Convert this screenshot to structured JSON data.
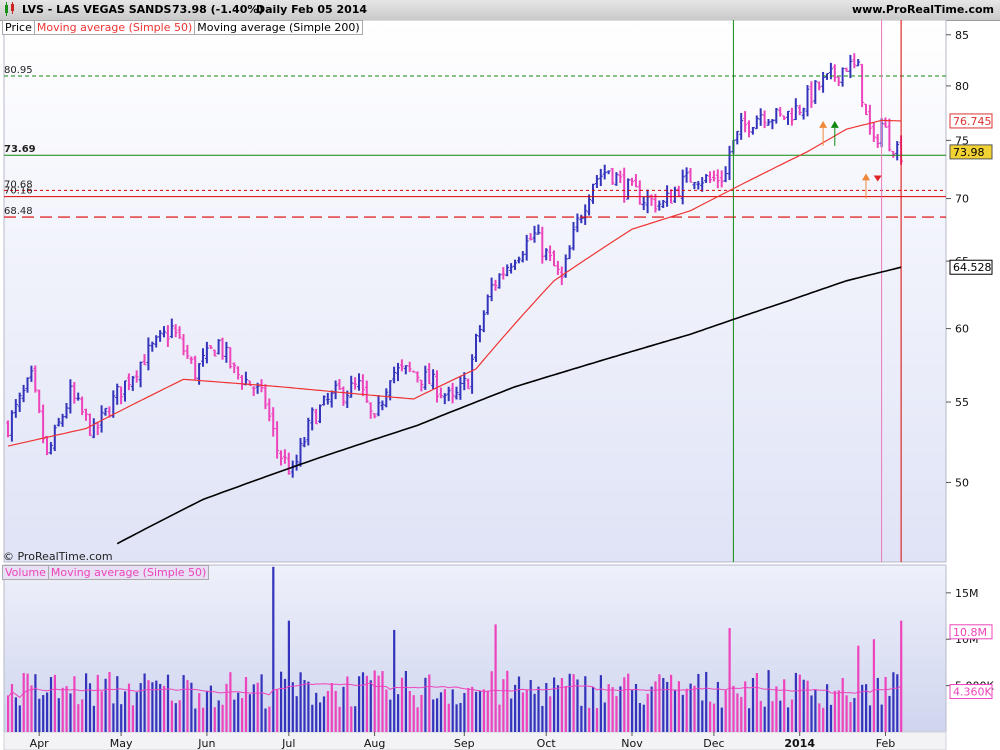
{
  "header": {
    "title": "LVS - LAS VEGAS SANDS",
    "quote": "73.98 (-1.40%)",
    "period": "Daily  Feb 05 2014",
    "site": "www.ProRealTime.com"
  },
  "price_legend": {
    "price": "Price",
    "ma50": "Moving average (Simple 50)",
    "ma200": "Moving average (Simple 200)"
  },
  "volume_legend": {
    "volume": "Volume",
    "ma50": "Moving average (Simple 50)"
  },
  "copyright": "© ProRealTime.com",
  "colors": {
    "up": "#3333bb",
    "down": "#ee44bb",
    "ma50": "#ee3333",
    "ma200": "#000000",
    "support": "#118811",
    "vline_green": "#118811",
    "vline_pink": "#ee77bb",
    "vline_red": "#dd0000",
    "last_price_bg": "#f2d233",
    "ma50_label": "#dd3333",
    "vol_label": "#ee44bb"
  },
  "chart_data": [
    {
      "type": "bar",
      "name": "price",
      "ylim": [
        45.5,
        86.5
      ],
      "yticks": [
        "50",
        "55",
        "60",
        "65",
        "70",
        "75",
        "80",
        "85"
      ],
      "ytick_values": [
        50,
        55,
        60,
        65,
        70,
        75,
        80,
        85
      ],
      "xticks": [
        "Apr",
        "May",
        "Jun",
        "Jul",
        "Aug",
        "Sep",
        "Oct",
        "Nov",
        "Dec",
        "2014",
        "Feb"
      ],
      "hlines": [
        {
          "label": "80.95",
          "value": 80.95,
          "style": "dashed-green"
        },
        {
          "label": "73.69",
          "value": 73.69,
          "style": "solid-green"
        },
        {
          "label": "70.68",
          "value": 70.68,
          "style": "dashed-red"
        },
        {
          "label": "70.16",
          "value": 70.16,
          "style": "solid-red"
        },
        {
          "label": "68.48",
          "value": 68.48,
          "style": "longdash-red"
        }
      ],
      "right_labels": [
        {
          "label": "76.745",
          "value": 76.745,
          "kind": "ma50"
        },
        {
          "label": "73.98",
          "value": 73.98,
          "kind": "last"
        },
        {
          "label": "64.528",
          "value": 64.528,
          "kind": "ma200"
        }
      ],
      "anchors": [
        [
          0,
          53.5
        ],
        [
          6,
          56.5
        ],
        [
          10,
          51.5
        ],
        [
          16,
          55.5
        ],
        [
          22,
          53
        ],
        [
          28,
          55.5
        ],
        [
          35,
          58
        ],
        [
          42,
          60
        ],
        [
          48,
          57
        ],
        [
          54,
          59
        ],
        [
          58,
          57
        ],
        [
          63,
          56
        ],
        [
          66,
          55
        ],
        [
          69,
          52
        ],
        [
          73,
          50.5
        ],
        [
          78,
          54
        ],
        [
          84,
          55.5
        ],
        [
          90,
          56
        ],
        [
          94,
          53.5
        ],
        [
          98,
          57
        ],
        [
          104,
          57
        ],
        [
          110,
          56
        ],
        [
          114,
          55
        ],
        [
          118,
          56.5
        ],
        [
          120,
          59
        ],
        [
          124,
          63
        ],
        [
          130,
          65.5
        ],
        [
          135,
          67
        ],
        [
          138,
          65.5
        ],
        [
          142,
          63.5
        ],
        [
          146,
          68
        ],
        [
          150,
          71.5
        ],
        [
          154,
          72.5
        ],
        [
          158,
          71
        ],
        [
          163,
          70
        ],
        [
          168,
          69.5
        ],
        [
          172,
          71
        ],
        [
          176,
          72
        ],
        [
          180,
          71.5
        ],
        [
          184,
          72
        ],
        [
          185,
          74
        ],
        [
          188,
          76
        ],
        [
          193,
          77.5
        ],
        [
          198,
          77
        ],
        [
          203,
          78
        ],
        [
          208,
          80
        ],
        [
          212,
          81
        ],
        [
          215,
          82
        ],
        [
          218,
          81.5
        ],
        [
          220,
          77
        ],
        [
          222,
          74.5
        ],
        [
          224,
          76.5
        ],
        [
          226,
          75
        ],
        [
          229,
          74
        ]
      ],
      "ma50": [
        [
          0,
          52.2
        ],
        [
          20,
          53.3
        ],
        [
          45,
          56.5
        ],
        [
          70,
          56.0
        ],
        [
          95,
          55.4
        ],
        [
          104,
          55.2
        ],
        [
          120,
          57.2
        ],
        [
          140,
          63.5
        ],
        [
          160,
          67.5
        ],
        [
          175,
          69.0
        ],
        [
          190,
          71.5
        ],
        [
          205,
          74.0
        ],
        [
          215,
          76.0
        ],
        [
          224,
          76.8
        ],
        [
          229,
          76.745
        ]
      ],
      "ma200": [
        [
          28,
          46.5
        ],
        [
          50,
          49
        ],
        [
          80,
          51.5
        ],
        [
          105,
          53.5
        ],
        [
          130,
          56
        ],
        [
          155,
          58
        ],
        [
          175,
          59.6
        ],
        [
          200,
          62
        ],
        [
          215,
          63.5
        ],
        [
          229,
          64.528
        ]
      ],
      "markers": [
        {
          "kind": "up-green",
          "i": 212,
          "value": 76.3
        },
        {
          "kind": "up-orange",
          "i": 209,
          "value": 76.3
        },
        {
          "kind": "up-orange",
          "i": 220,
          "value": 71.7
        },
        {
          "kind": "down-red",
          "i": 223,
          "value": 71.6
        }
      ],
      "vlines": [
        {
          "i": 186,
          "kind": "green"
        },
        {
          "i": 224,
          "kind": "pink"
        },
        {
          "i": 229,
          "kind": "red"
        }
      ]
    },
    {
      "type": "bar",
      "name": "volume",
      "ylim": [
        0,
        18
      ],
      "yticks": [
        "15M",
        "10M",
        "5,000K"
      ],
      "ytick_values": [
        15,
        10,
        5
      ],
      "right_labels": [
        {
          "label": "10.8M",
          "value": 10.8
        },
        {
          "label": "4.360K",
          "value": 4.36
        }
      ],
      "base": 4.6,
      "spikes": [
        [
          68,
          17.8
        ],
        [
          72,
          12.0
        ],
        [
          99,
          11.0
        ],
        [
          125,
          11.6
        ],
        [
          185,
          11.2
        ],
        [
          218,
          9.3
        ],
        [
          222,
          10.0
        ],
        [
          229,
          12.0
        ]
      ]
    }
  ]
}
